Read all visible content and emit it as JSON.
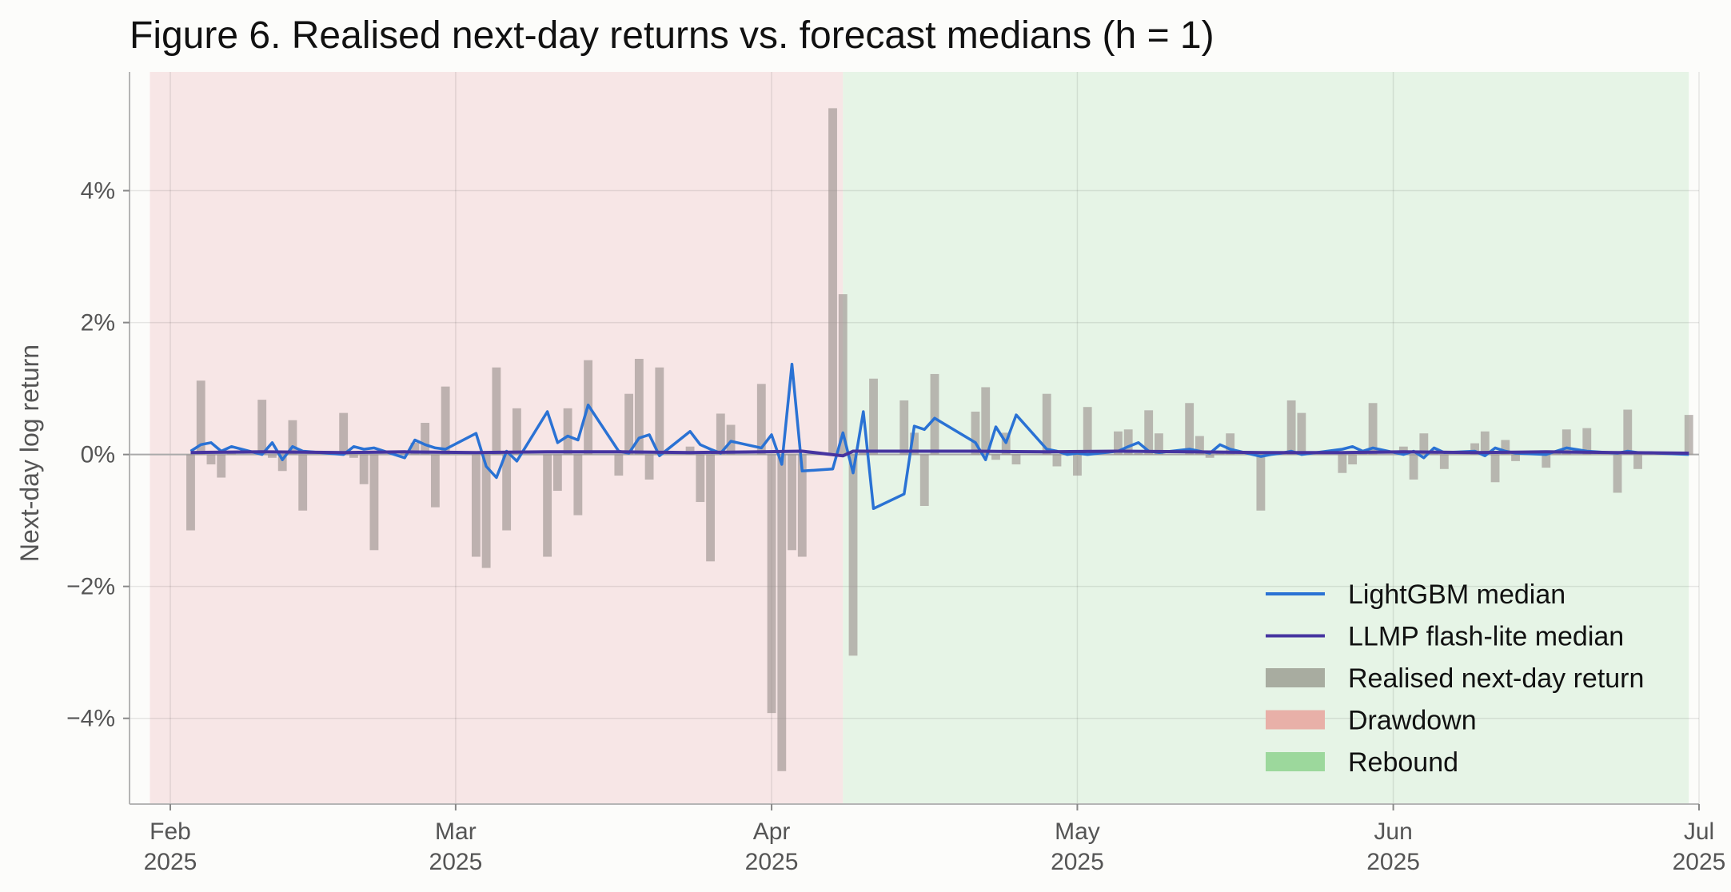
{
  "chart_data": {
    "type": "bar+line",
    "title": "Figure 6.  Realised next-day returns vs. forecast medians (h = 1)",
    "ylabel": "Next-day log return",
    "xlabel": "",
    "xlim": [
      "2025-01-28",
      "2025-07-01"
    ],
    "ylim": [
      -5.3,
      5.8
    ],
    "yticks": [
      {
        "value": 4,
        "label": "4%"
      },
      {
        "value": 2,
        "label": "2%"
      },
      {
        "value": 0,
        "label": "0%"
      },
      {
        "value": -2,
        "label": "−2%"
      },
      {
        "value": -4,
        "label": "−4%"
      }
    ],
    "xticks": [
      {
        "date": "2025-02-01",
        "line1": "Feb",
        "line2": "2025"
      },
      {
        "date": "2025-03-01",
        "line1": "Mar",
        "line2": "2025"
      },
      {
        "date": "2025-04-01",
        "line1": "Apr",
        "line2": "2025"
      },
      {
        "date": "2025-05-01",
        "line1": "May",
        "line2": "2025"
      },
      {
        "date": "2025-06-01",
        "line1": "Jun",
        "line2": "2025"
      },
      {
        "date": "2025-07-01",
        "line1": "Jul",
        "line2": "2025"
      }
    ],
    "grid": true,
    "legend_position": "bottom-right",
    "regions": [
      {
        "name": "Drawdown",
        "start": "2025-01-30",
        "end": "2025-04-08",
        "color": "#f7e6e6"
      },
      {
        "name": "Rebound",
        "start": "2025-04-08",
        "end": "2025-06-30",
        "color": "#e6f4e6"
      }
    ],
    "colors": {
      "lgbm": "#2a72d4",
      "llmp": "#4634a0",
      "bar": "#9a8f8c",
      "bar_legend": "#a8aca0",
      "drawdown_legend": "#e8b0a8",
      "rebound_legend": "#9cd89c",
      "zero_line": "#aaaaaa"
    },
    "bars": {
      "name": "Realised next-day return",
      "dates": [
        "2025-02-03",
        "2025-02-04",
        "2025-02-05",
        "2025-02-06",
        "2025-02-07",
        "2025-02-10",
        "2025-02-11",
        "2025-02-12",
        "2025-02-13",
        "2025-02-14",
        "2025-02-18",
        "2025-02-19",
        "2025-02-20",
        "2025-02-21",
        "2025-02-24",
        "2025-02-25",
        "2025-02-26",
        "2025-02-27",
        "2025-02-28",
        "2025-03-03",
        "2025-03-04",
        "2025-03-05",
        "2025-03-06",
        "2025-03-07",
        "2025-03-10",
        "2025-03-11",
        "2025-03-12",
        "2025-03-13",
        "2025-03-14",
        "2025-03-17",
        "2025-03-18",
        "2025-03-19",
        "2025-03-20",
        "2025-03-21",
        "2025-03-24",
        "2025-03-25",
        "2025-03-26",
        "2025-03-27",
        "2025-03-28",
        "2025-03-31",
        "2025-04-01",
        "2025-04-02",
        "2025-04-03",
        "2025-04-04",
        "2025-04-07",
        "2025-04-08",
        "2025-04-09",
        "2025-04-10",
        "2025-04-11",
        "2025-04-14",
        "2025-04-15",
        "2025-04-16",
        "2025-04-17",
        "2025-04-21",
        "2025-04-22",
        "2025-04-23",
        "2025-04-24",
        "2025-04-25",
        "2025-04-28",
        "2025-04-29",
        "2025-04-30",
        "2025-05-01",
        "2025-05-02",
        "2025-05-05",
        "2025-05-06",
        "2025-05-07",
        "2025-05-08",
        "2025-05-09",
        "2025-05-12",
        "2025-05-13",
        "2025-05-14",
        "2025-05-15",
        "2025-05-16",
        "2025-05-19",
        "2025-05-20",
        "2025-05-21",
        "2025-05-22",
        "2025-05-23",
        "2025-05-27",
        "2025-05-28",
        "2025-05-29",
        "2025-05-30",
        "2025-06-02",
        "2025-06-03",
        "2025-06-04",
        "2025-06-05",
        "2025-06-06",
        "2025-06-09",
        "2025-06-10",
        "2025-06-11",
        "2025-06-12",
        "2025-06-13",
        "2025-06-16",
        "2025-06-17",
        "2025-06-18",
        "2025-06-20",
        "2025-06-23",
        "2025-06-24",
        "2025-06-25",
        "2025-06-26",
        "2025-06-27",
        "2025-06-30"
      ],
      "values": [
        -1.15,
        1.12,
        -0.15,
        -0.35,
        0.05,
        0.83,
        -0.05,
        -0.25,
        0.52,
        -0.85,
        0.63,
        -0.05,
        -0.45,
        -1.45,
        0.02,
        0.18,
        0.48,
        -0.8,
        1.03,
        -1.55,
        -1.72,
        1.32,
        -1.15,
        0.7,
        -1.55,
        -0.55,
        0.7,
        -0.92,
        1.43,
        -0.32,
        0.92,
        1.45,
        -0.38,
        1.32,
        0.12,
        -0.72,
        -1.62,
        0.62,
        0.45,
        1.07,
        -3.92,
        -4.8,
        -1.45,
        -1.55,
        5.25,
        2.43,
        -3.05,
        0.05,
        1.15,
        0.82,
        0.33,
        -0.78,
        1.22,
        0.65,
        1.02,
        -0.08,
        0.33,
        -0.15,
        0.92,
        -0.18,
        0.05,
        -0.32,
        0.72,
        0.35,
        0.38,
        0.02,
        0.67,
        0.32,
        0.78,
        0.28,
        -0.05,
        0.05,
        0.32,
        -0.85,
        0.02,
        0.05,
        0.82,
        0.63,
        -0.28,
        -0.15,
        0.02,
        0.78,
        0.12,
        -0.38,
        0.32,
        0.02,
        -0.22,
        0.17,
        0.35,
        -0.42,
        0.22,
        -0.1,
        -0.2,
        0.05,
        0.38,
        0.4,
        -0.58,
        0.68,
        -0.22,
        0.05,
        0.02,
        0.6
      ]
    },
    "series": [
      {
        "name": "LightGBM median",
        "dates": [
          "2025-02-03",
          "2025-02-04",
          "2025-02-05",
          "2025-02-06",
          "2025-02-07",
          "2025-02-10",
          "2025-02-11",
          "2025-02-12",
          "2025-02-13",
          "2025-02-14",
          "2025-02-18",
          "2025-02-19",
          "2025-02-20",
          "2025-02-21",
          "2025-02-24",
          "2025-02-25",
          "2025-02-26",
          "2025-02-27",
          "2025-02-28",
          "2025-03-03",
          "2025-03-04",
          "2025-03-05",
          "2025-03-06",
          "2025-03-07",
          "2025-03-10",
          "2025-03-11",
          "2025-03-12",
          "2025-03-13",
          "2025-03-14",
          "2025-03-17",
          "2025-03-18",
          "2025-03-19",
          "2025-03-20",
          "2025-03-21",
          "2025-03-24",
          "2025-03-25",
          "2025-03-26",
          "2025-03-27",
          "2025-03-28",
          "2025-03-31",
          "2025-04-01",
          "2025-04-02",
          "2025-04-03",
          "2025-04-04",
          "2025-04-07",
          "2025-04-08",
          "2025-04-09",
          "2025-04-10",
          "2025-04-11",
          "2025-04-14",
          "2025-04-15",
          "2025-04-16",
          "2025-04-17",
          "2025-04-21",
          "2025-04-22",
          "2025-04-23",
          "2025-04-24",
          "2025-04-25",
          "2025-04-28",
          "2025-04-29",
          "2025-04-30",
          "2025-05-01",
          "2025-05-02",
          "2025-05-05",
          "2025-05-06",
          "2025-05-07",
          "2025-05-08",
          "2025-05-09",
          "2025-05-12",
          "2025-05-13",
          "2025-05-14",
          "2025-05-15",
          "2025-05-16",
          "2025-05-19",
          "2025-05-20",
          "2025-05-21",
          "2025-05-22",
          "2025-05-23",
          "2025-05-27",
          "2025-05-28",
          "2025-05-29",
          "2025-05-30",
          "2025-06-02",
          "2025-06-03",
          "2025-06-04",
          "2025-06-05",
          "2025-06-06",
          "2025-06-09",
          "2025-06-10",
          "2025-06-11",
          "2025-06-12",
          "2025-06-13",
          "2025-06-16",
          "2025-06-17",
          "2025-06-18",
          "2025-06-20",
          "2025-06-23",
          "2025-06-24",
          "2025-06-25",
          "2025-06-26",
          "2025-06-27",
          "2025-06-30"
        ],
        "values": [
          0.05,
          0.15,
          0.18,
          0.05,
          0.12,
          0.0,
          0.18,
          -0.08,
          0.12,
          0.05,
          0.0,
          0.12,
          0.08,
          0.1,
          -0.05,
          0.22,
          0.15,
          0.1,
          0.08,
          0.32,
          -0.18,
          -0.35,
          0.05,
          -0.1,
          0.65,
          0.18,
          0.28,
          0.22,
          0.75,
          0.05,
          0.02,
          0.25,
          0.3,
          -0.02,
          0.35,
          0.15,
          0.08,
          0.02,
          0.2,
          0.1,
          0.3,
          -0.15,
          1.37,
          -0.25,
          -0.22,
          0.33,
          -0.28,
          0.65,
          -0.82,
          -0.6,
          0.43,
          0.38,
          0.55,
          0.18,
          -0.08,
          0.42,
          0.18,
          0.6,
          0.08,
          0.05,
          0.0,
          0.02,
          0.0,
          0.05,
          0.12,
          0.18,
          0.05,
          0.03,
          0.08,
          0.05,
          0.02,
          0.15,
          0.08,
          -0.03,
          0.0,
          0.02,
          0.05,
          0.0,
          0.08,
          0.12,
          0.05,
          0.1,
          0.0,
          0.05,
          -0.05,
          0.1,
          0.03,
          0.05,
          -0.02,
          0.1,
          0.05,
          0.02,
          0.0,
          0.05,
          0.1,
          0.05,
          0.02,
          0.05,
          0.03,
          0.03,
          0.02,
          0.0
        ]
      },
      {
        "name": "LLMP flash-lite median",
        "dates": [
          "2025-02-03",
          "2025-02-10",
          "2025-02-18",
          "2025-02-24",
          "2025-03-03",
          "2025-03-10",
          "2025-03-17",
          "2025-03-24",
          "2025-03-31",
          "2025-04-04",
          "2025-04-08",
          "2025-04-09",
          "2025-04-14",
          "2025-04-21",
          "2025-04-28",
          "2025-05-05",
          "2025-05-12",
          "2025-05-19",
          "2025-05-27",
          "2025-06-02",
          "2025-06-09",
          "2025-06-16",
          "2025-06-23",
          "2025-06-30"
        ],
        "values": [
          0.03,
          0.04,
          0.03,
          0.04,
          0.03,
          0.04,
          0.04,
          0.03,
          0.04,
          0.05,
          -0.02,
          0.05,
          0.05,
          0.05,
          0.04,
          0.05,
          0.04,
          0.03,
          0.03,
          0.04,
          0.03,
          0.04,
          0.03,
          0.02
        ]
      }
    ],
    "legend": [
      {
        "label": "LightGBM median",
        "kind": "line",
        "color": "#2a72d4"
      },
      {
        "label": "LLMP flash-lite median",
        "kind": "line",
        "color": "#4634a0"
      },
      {
        "label": "Realised next-day return",
        "kind": "patch",
        "color": "#a8aca0"
      },
      {
        "label": "Drawdown",
        "kind": "patch",
        "color": "#e8b0a8"
      },
      {
        "label": "Rebound",
        "kind": "patch",
        "color": "#9cd89c"
      }
    ]
  }
}
